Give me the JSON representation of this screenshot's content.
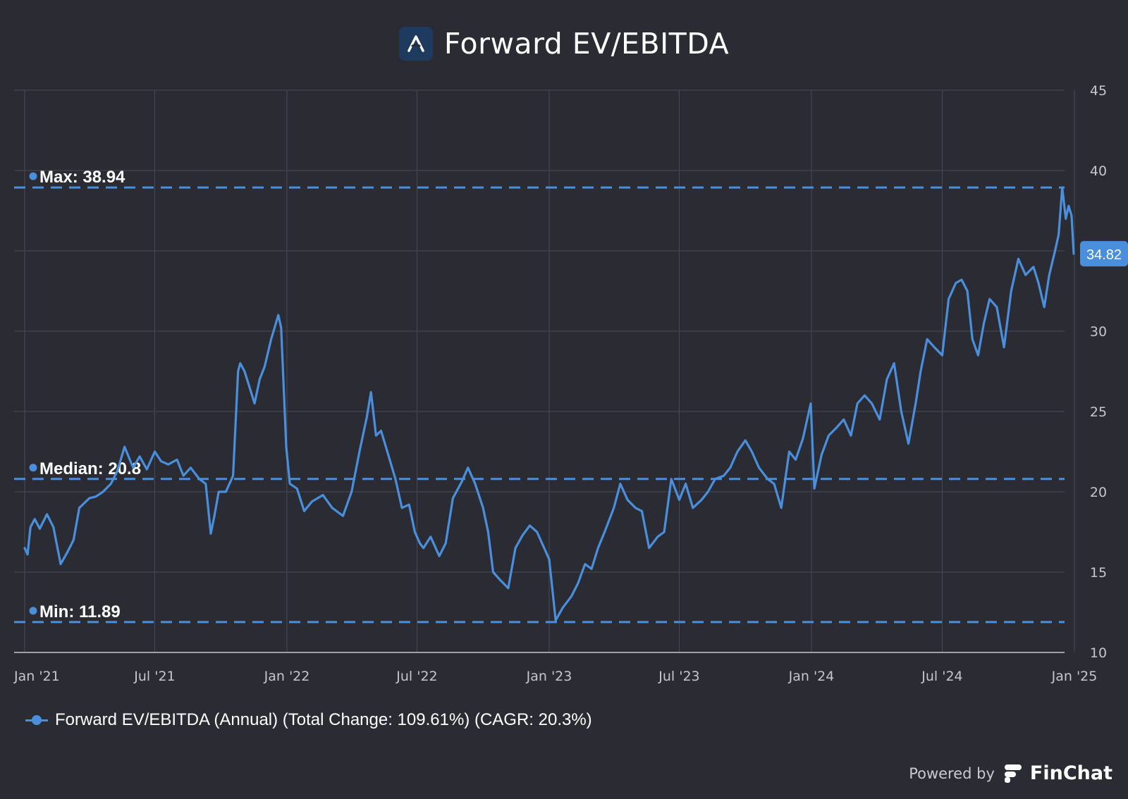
{
  "header": {
    "title": "Forward EV/EBITDA",
    "logo_icon": "finchat-a-logo-icon"
  },
  "chart_data": {
    "type": "line",
    "title": "Forward EV/EBITDA",
    "ylim": [
      10,
      45
    ],
    "y_ticks": [
      "45",
      "40",
      "35",
      "30",
      "25",
      "20",
      "15",
      "10"
    ],
    "x_ticks": [
      "Jan '21",
      "Jul '21",
      "Jan '22",
      "Jul '22",
      "Jan '23",
      "Jul '23",
      "Jan '24",
      "Jul '24",
      "Jan '25"
    ],
    "x_tick_dates": [
      "2021-01-01",
      "2021-07-01",
      "2022-01-01",
      "2022-07-01",
      "2023-01-01",
      "2023-07-01",
      "2024-01-01",
      "2024-07-01",
      "2025-01-01"
    ],
    "grid": true,
    "series": [
      {
        "name": "Forward EV/EBITDA (Annual) (Total Change: 109.61%) (CAGR: 20.3%)",
        "color": "#4a8fdc",
        "x": [
          "2021-01-01",
          "2021-01-05",
          "2021-01-09",
          "2021-01-15",
          "2021-01-22",
          "2021-02-01",
          "2021-02-10",
          "2021-02-20",
          "2021-03-01",
          "2021-03-10",
          "2021-03-18",
          "2021-03-25",
          "2021-04-01",
          "2021-04-10",
          "2021-04-20",
          "2021-05-01",
          "2021-05-10",
          "2021-05-20",
          "2021-06-01",
          "2021-06-10",
          "2021-06-20",
          "2021-07-01",
          "2021-07-10",
          "2021-07-20",
          "2021-08-01",
          "2021-08-10",
          "2021-08-20",
          "2021-09-01",
          "2021-09-10",
          "2021-09-17",
          "2021-09-22",
          "2021-09-28",
          "2021-10-08",
          "2021-10-18",
          "2021-10-25",
          "2021-10-28",
          "2021-11-03",
          "2021-11-10",
          "2021-11-17",
          "2021-11-24",
          "2021-12-01",
          "2021-12-10",
          "2021-12-20",
          "2021-12-24",
          "2021-12-31",
          "2022-01-05",
          "2022-01-15",
          "2022-01-25",
          "2022-02-05",
          "2022-02-20",
          "2022-03-05",
          "2022-03-20",
          "2022-04-01",
          "2022-04-12",
          "2022-04-22",
          "2022-04-28",
          "2022-05-05",
          "2022-05-12",
          "2022-05-20",
          "2022-06-01",
          "2022-06-10",
          "2022-06-20",
          "2022-06-28",
          "2022-07-05",
          "2022-07-10",
          "2022-07-20",
          "2022-08-01",
          "2022-08-10",
          "2022-08-20",
          "2022-09-01",
          "2022-09-10",
          "2022-09-20",
          "2022-10-01",
          "2022-10-08",
          "2022-10-15",
          "2022-10-25",
          "2022-11-05",
          "2022-11-15",
          "2022-11-25",
          "2022-12-05",
          "2022-12-15",
          "2022-12-25",
          "2023-01-01",
          "2023-01-10",
          "2023-01-20",
          "2023-02-01",
          "2023-02-10",
          "2023-02-20",
          "2023-03-01",
          "2023-03-10",
          "2023-03-20",
          "2023-04-01",
          "2023-04-10",
          "2023-04-20",
          "2023-05-01",
          "2023-05-10",
          "2023-05-20",
          "2023-06-01",
          "2023-06-10",
          "2023-06-20",
          "2023-07-01",
          "2023-07-10",
          "2023-07-20",
          "2023-08-01",
          "2023-08-10",
          "2023-08-20",
          "2023-09-01",
          "2023-09-10",
          "2023-09-20",
          "2023-10-01",
          "2023-10-10",
          "2023-10-20",
          "2023-11-01",
          "2023-11-10",
          "2023-11-20",
          "2023-12-01",
          "2023-12-10",
          "2023-12-20",
          "2023-12-31",
          "2024-01-05",
          "2024-01-15",
          "2024-01-25",
          "2024-02-05",
          "2024-02-15",
          "2024-02-25",
          "2024-03-05",
          "2024-03-15",
          "2024-03-25",
          "2024-04-05",
          "2024-04-15",
          "2024-04-25",
          "2024-05-05",
          "2024-05-15",
          "2024-05-25",
          "2024-06-01",
          "2024-06-10",
          "2024-06-20",
          "2024-07-01",
          "2024-07-10",
          "2024-07-20",
          "2024-07-28",
          "2024-08-05",
          "2024-08-12",
          "2024-08-20",
          "2024-08-28",
          "2024-09-05",
          "2024-09-15",
          "2024-09-25",
          "2024-10-05",
          "2024-10-15",
          "2024-10-25",
          "2024-11-05",
          "2024-11-12",
          "2024-11-20",
          "2024-11-27",
          "2024-12-05",
          "2024-12-10",
          "2024-12-15",
          "2024-12-20",
          "2024-12-24",
          "2024-12-28",
          "2024-12-31"
        ],
        "values": [
          16.5,
          16.1,
          17.8,
          18.3,
          17.7,
          18.6,
          17.8,
          15.5,
          16.2,
          17.0,
          19.0,
          19.3,
          19.6,
          19.7,
          20.0,
          20.5,
          21.3,
          22.8,
          21.5,
          22.2,
          21.4,
          22.5,
          21.9,
          21.7,
          22.0,
          21.0,
          21.5,
          20.8,
          20.5,
          17.4,
          18.5,
          20.0,
          20.0,
          21.0,
          27.5,
          28.0,
          27.5,
          26.5,
          25.5,
          27.0,
          27.8,
          29.5,
          31.0,
          30.2,
          22.8,
          20.5,
          20.2,
          18.8,
          19.4,
          19.8,
          19.0,
          18.5,
          20.0,
          22.5,
          24.6,
          26.2,
          23.5,
          23.8,
          22.6,
          20.8,
          19.0,
          19.2,
          17.5,
          16.8,
          16.5,
          17.2,
          16.0,
          16.8,
          19.6,
          20.6,
          21.5,
          20.5,
          19.0,
          17.5,
          15.0,
          14.5,
          14.0,
          16.5,
          17.3,
          17.9,
          17.5,
          16.5,
          15.8,
          12.0,
          12.8,
          13.5,
          14.3,
          15.5,
          15.2,
          16.5,
          17.6,
          19.0,
          20.5,
          19.5,
          19.0,
          18.8,
          16.5,
          17.2,
          17.5,
          20.8,
          19.5,
          20.5,
          19.0,
          19.5,
          20.0,
          20.8,
          21.0,
          21.5,
          22.5,
          23.2,
          22.5,
          21.5,
          20.8,
          20.5,
          19.0,
          22.5,
          22.0,
          23.3,
          25.5,
          20.2,
          22.3,
          23.5,
          24.0,
          24.5,
          23.5,
          25.5,
          26.0,
          25.5,
          24.5,
          27.0,
          28.0,
          25.0,
          23.0,
          25.5,
          27.5,
          29.5,
          29.0,
          28.5,
          32.0,
          33.0,
          33.2,
          32.5,
          29.5,
          28.5,
          30.5,
          32.0,
          31.5,
          29.0,
          32.5,
          34.5,
          33.5,
          34.0,
          33.0,
          31.5,
          33.5,
          35.0,
          36.0,
          38.94,
          37.0,
          37.8,
          37.2,
          34.82
        ]
      }
    ],
    "reference_lines": [
      {
        "label": "Max: 38.94",
        "value": 38.94
      },
      {
        "label": "Median: 20.8",
        "value": 20.8
      },
      {
        "label": "Min: 11.89",
        "value": 11.89
      }
    ],
    "last_value_label": "34.82",
    "legend": {
      "position": "bottom-left",
      "label": "Forward EV/EBITDA (Annual) (Total Change: 109.61%) (CAGR: 20.3%)"
    }
  },
  "footer": {
    "powered_by": "Powered by",
    "brand": "FinChat",
    "brand_icon": "finchat-logo-icon"
  }
}
